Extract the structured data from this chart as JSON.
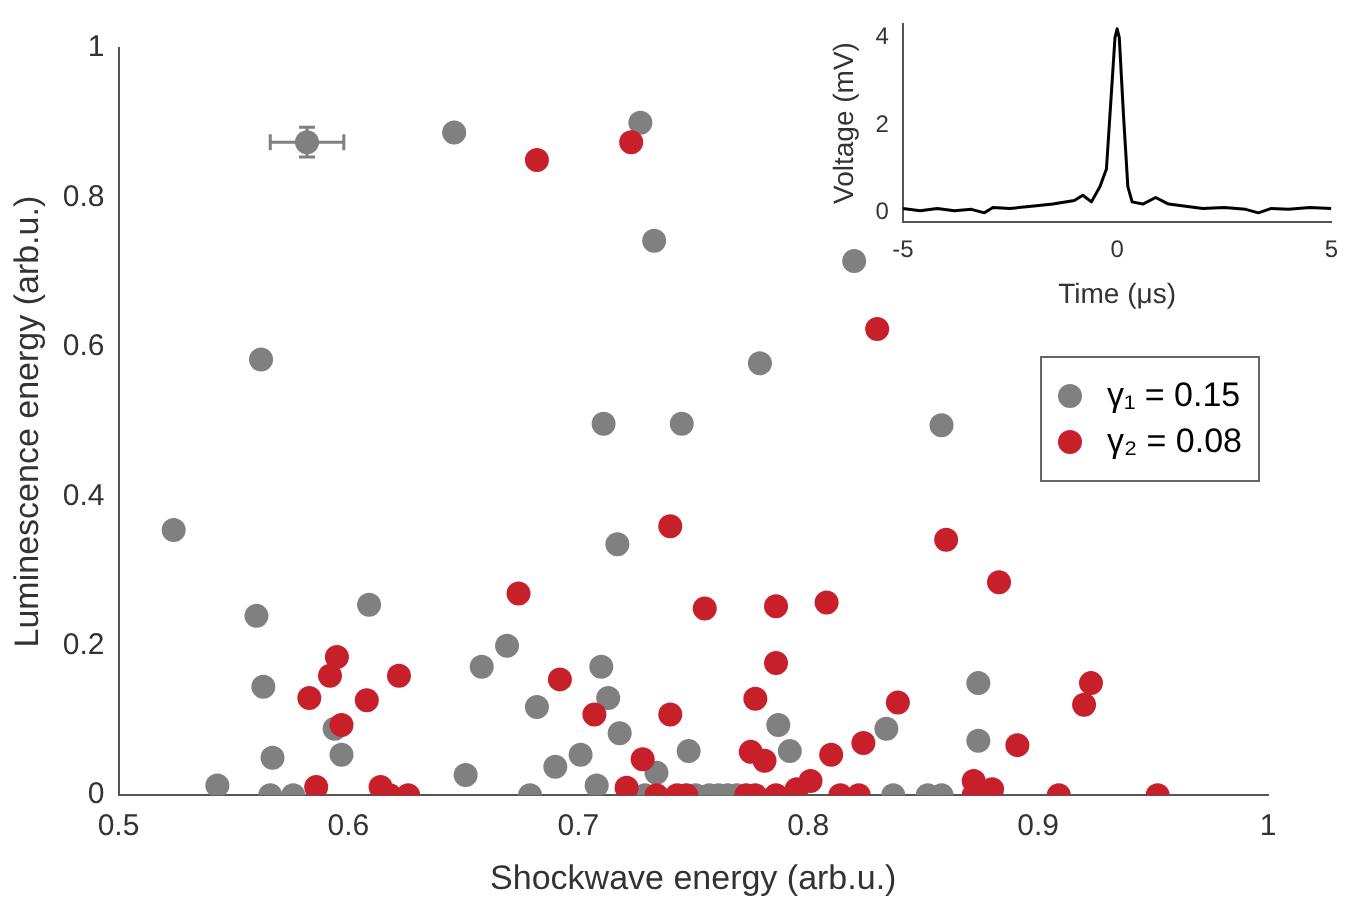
{
  "chart_data": [
    {
      "type": "scatter",
      "xlabel": "Shockwave energy (arb.u.)",
      "ylabel": "Luminescence energy (arb.u.)",
      "xlim": [
        0.5,
        1
      ],
      "xticks": [
        0.5,
        0.6,
        0.7,
        0.8,
        0.9,
        1
      ],
      "ylim": [
        0,
        1
      ],
      "yticks": [
        0,
        0.2,
        0.4,
        0.6,
        0.8,
        1
      ],
      "grid": false,
      "legend": "right",
      "marker": "circle",
      "series": [
        {
          "name": "γ₁ = 0.15",
          "color": "#808080",
          "x": [
            0.582,
            0.646,
            0.727,
            0.733,
            0.562,
            0.82,
            0.779,
            0.858,
            0.711,
            0.745,
            0.524,
            0.56,
            0.609,
            0.717,
            0.563,
            0.567,
            0.543,
            0.566,
            0.576,
            0.597,
            0.594,
            0.651,
            0.658,
            0.669,
            0.679,
            0.682,
            0.69,
            0.701,
            0.71,
            0.713,
            0.708,
            0.718,
            0.734,
            0.748,
            0.787,
            0.792,
            0.834,
            0.874,
            0.874,
            0.729,
            0.751,
            0.757,
            0.761,
            0.765,
            0.769,
            0.837,
            0.852,
            0.858
          ],
          "values": [
            0.874,
            0.887,
            0.9,
            0.742,
            0.583,
            0.715,
            0.578,
            0.495,
            0.497,
            0.497,
            0.355,
            0.24,
            0.255,
            0.336,
            0.145,
            0.05,
            0.013,
            0,
            0,
            0.054,
            0.089,
            0.027,
            0.172,
            0.2,
            0,
            0.118,
            0.038,
            0.054,
            0.172,
            0.13,
            0.013,
            0.083,
            0.03,
            0.059,
            0.094,
            0.059,
            0.089,
            0.15,
            0.073,
            0,
            0,
            0,
            0,
            0,
            0,
            0,
            0,
            0
          ],
          "errors": [
            0.02,
            null,
            null,
            null,
            null,
            null,
            null,
            null,
            null,
            null,
            null,
            null,
            null,
            null,
            null,
            null,
            null,
            null,
            null,
            null,
            null,
            null,
            null,
            null,
            null,
            null,
            null,
            null,
            null,
            null,
            null,
            null,
            null,
            null,
            null,
            null,
            null,
            null,
            null,
            null,
            null,
            null,
            null,
            null,
            null,
            null,
            null,
            null
          ],
          "xerrors": [
            0.016,
            null,
            null,
            null,
            null,
            null,
            null,
            null,
            null,
            null,
            null,
            null,
            null,
            null,
            null,
            null,
            null,
            null,
            null,
            null,
            null,
            null,
            null,
            null,
            null,
            null,
            null,
            null,
            null,
            null,
            null,
            null,
            null,
            null,
            null,
            null,
            null,
            null,
            null,
            null,
            null,
            null,
            null,
            null,
            null,
            null,
            null,
            null
          ]
        },
        {
          "name": "γ₂ = 0.08",
          "color": "#c8202a",
          "x": [
            0.682,
            0.723,
            0.83,
            0.74,
            0.755,
            0.786,
            0.808,
            0.86,
            0.883,
            0.674,
            0.692,
            0.707,
            0.74,
            0.728,
            0.721,
            0.586,
            0.583,
            0.592,
            0.595,
            0.597,
            0.608,
            0.622,
            0.614,
            0.618,
            0.626,
            0.777,
            0.786,
            0.775,
            0.781,
            0.81,
            0.824,
            0.839,
            0.891,
            0.923,
            0.92,
            0.872,
            0.88,
            0.801,
            0.795,
            0.743,
            0.734,
            0.747,
            0.773,
            0.777,
            0.786,
            0.814,
            0.822,
            0.872,
            0.909,
            0.952
          ],
          "values": [
            0.85,
            0.874,
            0.624,
            0.36,
            0.25,
            0.253,
            0.258,
            0.342,
            0.285,
            0.27,
            0.155,
            0.108,
            0.108,
            0.048,
            0.01,
            0.011,
            0.13,
            0.16,
            0.185,
            0.094,
            0.127,
            0.16,
            0.011,
            0,
            0,
            0.129,
            0.177,
            0.058,
            0.046,
            0.054,
            0.07,
            0.124,
            0.067,
            0.15,
            0.121,
            0.019,
            0.008,
            0.019,
            0.008,
            0,
            0,
            0,
            0,
            0,
            0,
            0,
            0,
            0,
            0,
            0
          ]
        }
      ]
    },
    {
      "type": "line",
      "xlabel": "Time (μs)",
      "ylabel": "Voltage (mV)",
      "xlim": [
        -5,
        5
      ],
      "xticks": [
        -5,
        0,
        5
      ],
      "ylim": [
        -0.2,
        4.3
      ],
      "yticks": [
        0,
        2,
        4
      ],
      "grid": false,
      "legend": false,
      "marker": "none",
      "line_style": "solid",
      "series": [
        {
          "color": "#000000",
          "x": [
            -5,
            -4.6,
            -4.2,
            -3.8,
            -3.4,
            -3.1,
            -2.9,
            -2.5,
            -2,
            -1.5,
            -1,
            -0.8,
            -0.6,
            -0.4,
            -0.25,
            -0.15,
            -0.05,
            0,
            0.05,
            0.15,
            0.25,
            0.35,
            0.6,
            0.9,
            1.2,
            1.6,
            2,
            2.5,
            3,
            3.3,
            3.6,
            4,
            4.5,
            5
          ],
          "values": [
            0.1,
            0.05,
            0.1,
            0.05,
            0.08,
            0,
            0.12,
            0.1,
            0.15,
            0.2,
            0.28,
            0.4,
            0.25,
            0.6,
            1.0,
            2.5,
            4.0,
            4.2,
            4.0,
            2.2,
            0.6,
            0.25,
            0.2,
            0.35,
            0.2,
            0.15,
            0.1,
            0.12,
            0.08,
            0,
            0.1,
            0.08,
            0.12,
            0.1
          ]
        }
      ]
    }
  ]
}
